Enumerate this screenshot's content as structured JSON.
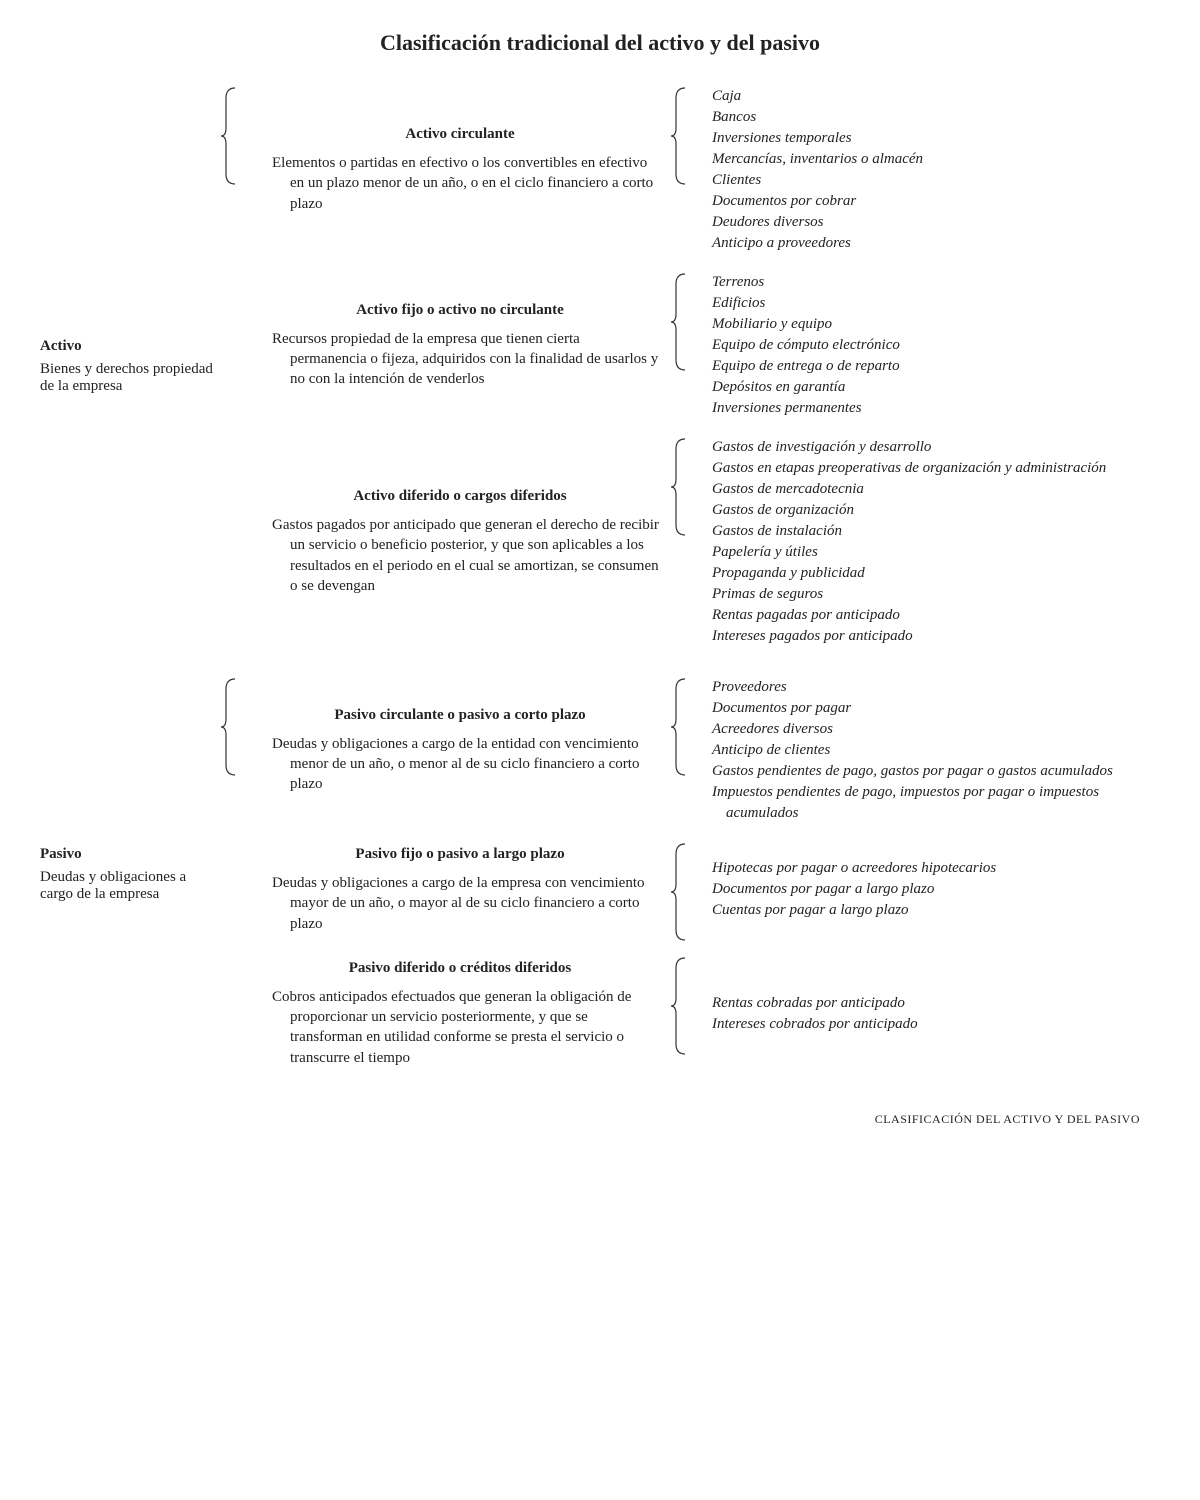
{
  "title": "Clasificación tradicional del activo y del pasivo",
  "footer": "CLASIFICACIÓN DEL ACTIVO Y DEL PASIVO",
  "sections": [
    {
      "name": "Activo",
      "desc": "Bienes y derechos propiedad de la empresa",
      "cats": [
        {
          "title": "Activo circulante",
          "desc": "Elementos o partidas en efectivo o los convertibles en efectivo en un plazo menor de un año, o en el ciclo financiero a corto plazo",
          "items": [
            "Caja",
            "Bancos",
            "Inversiones temporales",
            "Mercancías, inventarios o almacén",
            "Clientes",
            "Documentos por cobrar",
            "Deudores diversos",
            "Anticipo a proveedores"
          ]
        },
        {
          "title": "Activo fijo o activo no circulante",
          "desc": "Recursos propiedad de la empresa que tienen cierta permanencia o fijeza, adquiridos con la finalidad de usarlos y no con la intención de venderlos",
          "items": [
            "Terrenos",
            "Edificios",
            "Mobiliario y equipo",
            "Equipo de cómputo electrónico",
            "Equipo de entrega o de reparto",
            "Depósitos en garantía",
            "Inversiones permanentes"
          ]
        },
        {
          "title": "Activo diferido o cargos diferidos",
          "desc": "Gastos pagados por anticipado que generan el derecho de recibir un servicio o beneficio posterior, y que son aplicables a los resultados en el periodo en el cual se amortizan, se consumen o se devengan",
          "items": [
            "Gastos de investigación y desarrollo",
            "Gastos en etapas preoperativas de organización y administración",
            "Gastos de mercadotecnia",
            "Gastos de organización",
            "Gastos de instalación",
            "Papelería y útiles",
            "Propaganda y publicidad",
            "Primas de seguros",
            "Rentas pagadas por anticipado",
            "Intereses pagados por anticipado"
          ]
        }
      ]
    },
    {
      "name": "Pasivo",
      "desc": "Deudas y obligaciones a cargo de la empresa",
      "cats": [
        {
          "title": "Pasivo circulante o pasivo a corto plazo",
          "desc": "Deudas y obligaciones a cargo de la entidad con vencimiento menor de un año, o menor al de su ciclo financiero a corto plazo",
          "items": [
            "Proveedores",
            "Documentos por pagar",
            "Acreedores diversos",
            "Anticipo de clientes",
            "Gastos pendientes de pago, gastos por pagar o gastos acumulados",
            "Impuestos pendientes de pago, impuestos por pagar o impuestos acumulados"
          ]
        },
        {
          "title": "Pasivo fijo o pasivo a largo plazo",
          "desc": "Deudas y obligaciones a cargo de la empresa con vencimiento mayor de un año, o mayor al de su ciclo financiero a corto plazo",
          "items": [
            "Hipotecas por pagar o acreedores hipotecarios",
            "Documentos por pagar a largo plazo",
            "Cuentas por pagar a largo plazo"
          ]
        },
        {
          "title": "Pasivo diferido o créditos diferidos",
          "desc": "Cobros anticipados efectuados que generan la obligación de proporcionar un servicio posteriormente, y que se transforman en utilidad conforme se presta el servicio o transcurre el tiempo",
          "items": [
            "Rentas cobradas por anticipado",
            "Intereses cobrados por anticipado"
          ]
        }
      ]
    }
  ]
}
